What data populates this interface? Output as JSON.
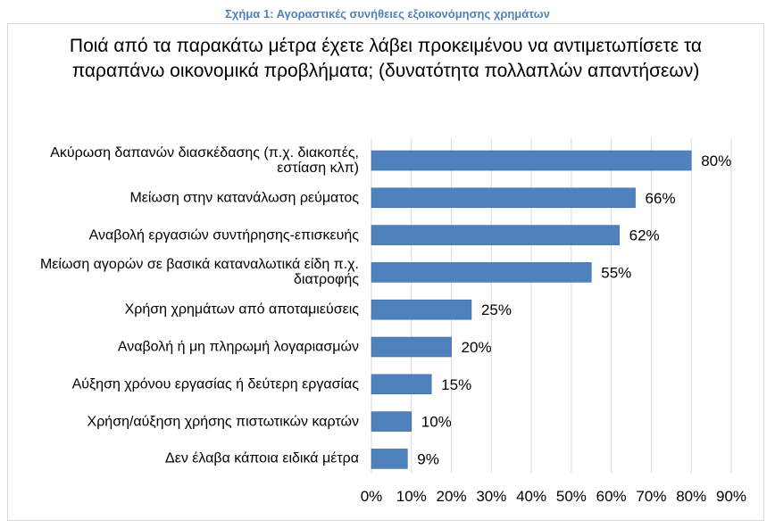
{
  "figure_caption": "Σχήμα 1: Αγοραστικές συνήθειες εξοικονόμησης χρημάτων",
  "colors": {
    "caption": "#4f81bd",
    "bar": "#4f81bd",
    "bar_border": "#3a6aa5",
    "grid": "#d9d9d9",
    "text": "#000000"
  },
  "chart_data": {
    "type": "bar",
    "orientation": "horizontal",
    "title": "Ποιά από τα παρακάτω μέτρα έχετε λάβει προκειμένου να αντιμετωπίσετε τα παραπάνω οικονομικά προβλήματα; (δυνατότητα πολλαπλών απαντήσεων)",
    "categories": [
      "Ακύρωση δαπανών διασκέδασης (π.χ. διακοπές, εστίαση κλπ)",
      "Μείωση στην κατανάλωση ρεύματος",
      "Αναβολή εργασιών συντήρησης-επισκευής",
      "Μείωση αγορών σε βασικά καταναλωτικά είδη π.χ. διατροφής",
      "Χρήση χρημάτων από αποταμιεύσεις",
      "Αναβολή ή μη πληρωμή λογαριασμών",
      "Αύξηση χρόνου εργασίας ή δεύτερη εργασίας",
      "Χρήση/αύξηση χρήσης πιστωτικών καρτών",
      "Δεν έλαβα κάποια ειδικά μέτρα"
    ],
    "values": [
      80,
      66,
      62,
      55,
      25,
      20,
      15,
      10,
      9
    ],
    "data_labels": [
      "80%",
      "66%",
      "62%",
      "55%",
      "25%",
      "20%",
      "15%",
      "10%",
      "9%"
    ],
    "xlim": [
      0,
      90
    ],
    "xticks": [
      0,
      10,
      20,
      30,
      40,
      50,
      60,
      70,
      80,
      90
    ],
    "xtick_labels": [
      "0%",
      "10%",
      "20%",
      "30%",
      "40%",
      "50%",
      "60%",
      "70%",
      "80%",
      "90%"
    ],
    "xlabel": "",
    "ylabel": "",
    "grid": "vertical",
    "legend": "none"
  }
}
